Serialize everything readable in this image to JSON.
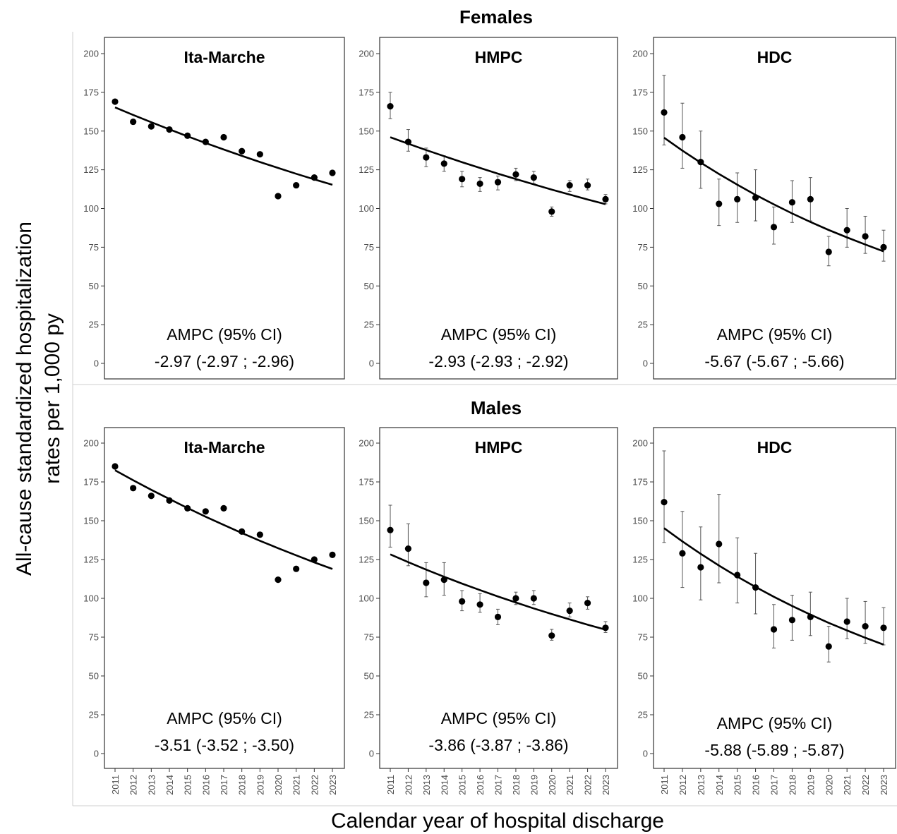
{
  "figure": {
    "ylabel_line1": "All-cause standardized hospitalization",
    "ylabel_line2": "rates per 1,000 py",
    "xlabel": "Calendar year of hospital discharge",
    "row_titles": [
      "Females",
      "Males"
    ]
  },
  "chart_data": [
    {
      "type": "scatter",
      "row": "Females",
      "title": "Ita-Marche",
      "x": [
        2011,
        2012,
        2013,
        2014,
        2015,
        2016,
        2017,
        2018,
        2019,
        2020,
        2021,
        2022,
        2023
      ],
      "y": [
        169,
        156,
        153,
        151,
        147,
        143,
        146,
        137,
        135,
        108,
        115,
        120,
        123
      ],
      "ci_low": [
        null,
        null,
        null,
        null,
        null,
        null,
        null,
        null,
        null,
        null,
        null,
        null,
        null
      ],
      "ci_high": [
        null,
        null,
        null,
        null,
        null,
        null,
        null,
        null,
        null,
        null,
        null,
        null,
        null
      ],
      "trend": [
        165.3,
        160.4,
        155.7,
        151.1,
        146.6,
        142.3,
        138.1,
        134.0,
        130.0,
        126.2,
        122.4,
        118.8,
        115.3
      ],
      "ylim": [
        0,
        200
      ],
      "yticks": [
        0,
        25,
        50,
        75,
        100,
        125,
        150,
        175,
        200
      ],
      "annotation_line1": "AMPC (95% CI)",
      "annotation_line2": "-2.97 (-2.97 ; -2.96)"
    },
    {
      "type": "scatter",
      "row": "Females",
      "title": "HMPC",
      "x": [
        2011,
        2012,
        2013,
        2014,
        2015,
        2016,
        2017,
        2018,
        2019,
        2020,
        2021,
        2022,
        2023
      ],
      "y": [
        166,
        143,
        133,
        129,
        119,
        116,
        117,
        122,
        120,
        98,
        115,
        115,
        106
      ],
      "ci_low": [
        158,
        137,
        127,
        124,
        114,
        111,
        112,
        118,
        116,
        95,
        111,
        112,
        103
      ],
      "ci_high": [
        175,
        151,
        139,
        134,
        124,
        120,
        121,
        126,
        124,
        101,
        118,
        119,
        109
      ],
      "trend": [
        146.0,
        141.8,
        137.7,
        133.8,
        129.9,
        126.2,
        122.5,
        119.0,
        115.6,
        112.2,
        109.0,
        105.8,
        102.8
      ],
      "ylim": [
        0,
        200
      ],
      "yticks": [
        0,
        25,
        50,
        75,
        100,
        125,
        150,
        175,
        200
      ],
      "annotation_line1": "AMPC (95% CI)",
      "annotation_line2": "-2.93 (-2.93 ; -2.92)"
    },
    {
      "type": "scatter",
      "row": "Females",
      "title": "HDC",
      "x": [
        2011,
        2012,
        2013,
        2014,
        2015,
        2016,
        2017,
        2018,
        2019,
        2020,
        2021,
        2022,
        2023
      ],
      "y": [
        162,
        146,
        130,
        103,
        106,
        107,
        88,
        104,
        106,
        72,
        86,
        82,
        75
      ],
      "ci_low": [
        141,
        126,
        113,
        89,
        91,
        92,
        77,
        91,
        92,
        63,
        75,
        71,
        66
      ],
      "ci_high": [
        186,
        168,
        150,
        119,
        123,
        125,
        101,
        118,
        120,
        82,
        100,
        95,
        86
      ],
      "trend": [
        145.7,
        137.4,
        129.6,
        122.3,
        115.4,
        108.8,
        102.7,
        96.8,
        91.3,
        86.1,
        81.3,
        76.7,
        72.3
      ],
      "ylim": [
        0,
        200
      ],
      "yticks": [
        0,
        25,
        50,
        75,
        100,
        125,
        150,
        175,
        200
      ],
      "annotation_line1": "AMPC (95% CI)",
      "annotation_line2": "-5.67 (-5.67 ; -5.66)"
    },
    {
      "type": "scatter",
      "row": "Males",
      "title": "Ita-Marche",
      "x": [
        2011,
        2012,
        2013,
        2014,
        2015,
        2016,
        2017,
        2018,
        2019,
        2020,
        2021,
        2022,
        2023
      ],
      "y": [
        185,
        171,
        166,
        163,
        158,
        156,
        158,
        143,
        141,
        112,
        119,
        125,
        128
      ],
      "ci_low": [
        null,
        null,
        null,
        null,
        null,
        null,
        null,
        null,
        null,
        null,
        null,
        null,
        null
      ],
      "ci_high": [
        null,
        null,
        null,
        null,
        null,
        null,
        null,
        null,
        null,
        null,
        null,
        null,
        null
      ],
      "trend": [
        182.5,
        176.1,
        169.9,
        164.0,
        158.2,
        152.6,
        147.3,
        142.1,
        137.1,
        132.3,
        127.7,
        123.2,
        118.9
      ],
      "ylim": [
        0,
        200
      ],
      "yticks": [
        0,
        25,
        50,
        75,
        100,
        125,
        150,
        175,
        200
      ],
      "annotation_line1": "AMPC (95% CI)",
      "annotation_line2": "-3.51 (-3.52 ; -3.50)"
    },
    {
      "type": "scatter",
      "row": "Males",
      "title": "HMPC",
      "x": [
        2011,
        2012,
        2013,
        2014,
        2015,
        2016,
        2017,
        2018,
        2019,
        2020,
        2021,
        2022,
        2023
      ],
      "y": [
        144,
        132,
        110,
        112,
        98,
        96,
        88,
        100,
        100,
        76,
        92,
        97,
        81
      ],
      "ci_low": [
        133,
        121,
        101,
        102,
        92,
        91,
        83,
        96,
        96,
        73,
        88,
        93,
        78
      ],
      "ci_high": [
        160,
        148,
        123,
        123,
        105,
        103,
        93,
        104,
        105,
        80,
        97,
        101,
        85
      ],
      "trend": [
        128.3,
        123.3,
        118.5,
        113.9,
        109.5,
        105.3,
        101.2,
        97.3,
        93.5,
        89.9,
        86.4,
        83.0,
        79.8
      ],
      "ylim": [
        0,
        200
      ],
      "yticks": [
        0,
        25,
        50,
        75,
        100,
        125,
        150,
        175,
        200
      ],
      "annotation_line1": "AMPC (95% CI)",
      "annotation_line2": "-3.86 (-3.87 ; -3.86)"
    },
    {
      "type": "scatter",
      "row": "Males",
      "title": "HDC",
      "x": [
        2011,
        2012,
        2013,
        2014,
        2015,
        2016,
        2017,
        2018,
        2019,
        2020,
        2021,
        2022,
        2023
      ],
      "y": [
        162,
        129,
        120,
        135,
        115,
        107,
        80,
        86,
        88,
        69,
        85,
        82,
        81
      ],
      "ci_low": [
        136,
        107,
        99,
        110,
        97,
        90,
        68,
        73,
        76,
        59,
        74,
        71,
        70
      ],
      "ci_high": [
        195,
        156,
        146,
        167,
        139,
        129,
        96,
        102,
        104,
        82,
        100,
        98,
        94
      ],
      "trend": [
        145.2,
        136.7,
        128.7,
        121.1,
        114.0,
        107.3,
        101.0,
        95.1,
        89.5,
        84.2,
        79.3,
        74.6,
        70.2
      ],
      "ylim": [
        0,
        200
      ],
      "yticks": [
        0,
        25,
        50,
        75,
        100,
        125,
        150,
        175,
        200
      ],
      "annotation_line1": "AMPC (95% CI)",
      "annotation_line2": "-5.88 (-5.89 ; -5.87)"
    }
  ]
}
